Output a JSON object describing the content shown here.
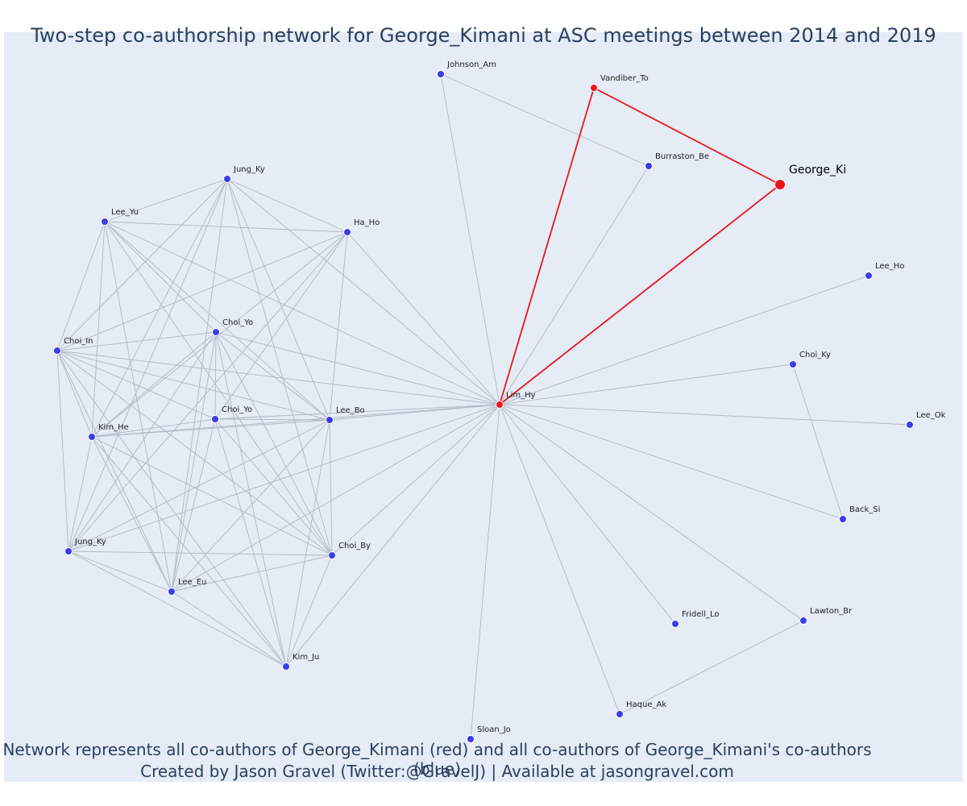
{
  "title": "Two-step co-authorship network for George_Kimani at ASC meetings between 2014 and 2019",
  "caption_line1": "Network represents all co-authors of George_Kimani (red) and all co-authors of George_Kimani's co-authors (blue)",
  "caption_line2": "Created by Jason Gravel (Twitter:@GravelJ) | Available at jasongravel.com",
  "colors": {
    "background": "#e5ecf6",
    "edge": "#b0b6c4",
    "focal_edge": "#e8161b",
    "red_node": "#e8161b",
    "blue_node": "#3a3ee8",
    "text": "#2a3f5f"
  },
  "nodes": [
    {
      "id": "george",
      "label": "George_Ki",
      "group": "focal"
    },
    {
      "id": "vandiber",
      "label": "Vandiber_To",
      "group": "red"
    },
    {
      "id": "lim",
      "label": "Lim_Hy",
      "group": "red"
    },
    {
      "id": "johnson",
      "label": "Johnson_Am",
      "group": "blue"
    },
    {
      "id": "burraston",
      "label": "Burraston_Be",
      "group": "blue"
    },
    {
      "id": "jungky1",
      "label": "Jung_Ky",
      "group": "blue"
    },
    {
      "id": "leeyu",
      "label": "Lee_Yu",
      "group": "blue"
    },
    {
      "id": "haho",
      "label": "Ha_Ho",
      "group": "blue"
    },
    {
      "id": "choiin",
      "label": "Choi_In",
      "group": "blue"
    },
    {
      "id": "choiyo1",
      "label": "Choi_Yo",
      "group": "blue"
    },
    {
      "id": "choiyo2",
      "label": "Choi_Yo",
      "group": "blue"
    },
    {
      "id": "leebo",
      "label": "Lee_Bo",
      "group": "blue"
    },
    {
      "id": "kimhe",
      "label": "Kim_He",
      "group": "blue"
    },
    {
      "id": "jungky2",
      "label": "Jung_Ky",
      "group": "blue"
    },
    {
      "id": "leeeu",
      "label": "Lee_Eu",
      "group": "blue"
    },
    {
      "id": "choiby",
      "label": "Choi_By",
      "group": "blue"
    },
    {
      "id": "kimju",
      "label": "Kim_Ju",
      "group": "blue"
    },
    {
      "id": "leeho",
      "label": "Lee_Ho",
      "group": "blue"
    },
    {
      "id": "choiky",
      "label": "Choi_Ky",
      "group": "blue"
    },
    {
      "id": "leeok",
      "label": "Lee_Ok",
      "group": "blue"
    },
    {
      "id": "backsi",
      "label": "Back_Si",
      "group": "blue"
    },
    {
      "id": "fridell",
      "label": "Fridell_Lo",
      "group": "blue"
    },
    {
      "id": "lawton",
      "label": "Lawton_Br",
      "group": "blue"
    },
    {
      "id": "haque",
      "label": "Haque_Ak",
      "group": "blue"
    },
    {
      "id": "sloan",
      "label": "Sloan_Jo",
      "group": "blue"
    }
  ],
  "edges": [
    [
      "george",
      "vandiber"
    ],
    [
      "george",
      "lim"
    ],
    [
      "vandiber",
      "lim"
    ],
    [
      "johnson",
      "burraston"
    ],
    [
      "johnson",
      "lim"
    ],
    [
      "burraston",
      "lim"
    ],
    [
      "lim",
      "leeho"
    ],
    [
      "lim",
      "choiky"
    ],
    [
      "lim",
      "leeok"
    ],
    [
      "lim",
      "backsi"
    ],
    [
      "lim",
      "fridell"
    ],
    [
      "lim",
      "lawton"
    ],
    [
      "lim",
      "haque"
    ],
    [
      "lim",
      "sloan"
    ],
    [
      "choiky",
      "backsi"
    ],
    [
      "lawton",
      "haque"
    ],
    [
      "lim",
      "jungky1"
    ],
    [
      "lim",
      "haho"
    ],
    [
      "lim",
      "leeyu"
    ],
    [
      "lim",
      "choiin"
    ],
    [
      "lim",
      "choiyo1"
    ],
    [
      "lim",
      "choiyo2"
    ],
    [
      "lim",
      "leebo"
    ],
    [
      "lim",
      "kimhe"
    ],
    [
      "lim",
      "jungky2"
    ],
    [
      "lim",
      "leeeu"
    ],
    [
      "lim",
      "choiby"
    ],
    [
      "lim",
      "kimju"
    ],
    [
      "jungky1",
      "leeyu"
    ],
    [
      "jungky1",
      "haho"
    ],
    [
      "jungky1",
      "choiin"
    ],
    [
      "jungky1",
      "kimhe"
    ],
    [
      "jungky1",
      "leebo"
    ],
    [
      "jungky1",
      "choiby"
    ],
    [
      "jungky1",
      "leeeu"
    ],
    [
      "jungky1",
      "jungky2"
    ],
    [
      "leeyu",
      "haho"
    ],
    [
      "leeyu",
      "choiin"
    ],
    [
      "leeyu",
      "kimhe"
    ],
    [
      "leeyu",
      "leebo"
    ],
    [
      "leeyu",
      "choiby"
    ],
    [
      "leeyu",
      "choiyo1"
    ],
    [
      "leeyu",
      "leeeu"
    ],
    [
      "haho",
      "choiin"
    ],
    [
      "haho",
      "kimhe"
    ],
    [
      "haho",
      "leebo"
    ],
    [
      "haho",
      "choiyo2"
    ],
    [
      "haho",
      "jungky2"
    ],
    [
      "choiin",
      "choiyo1"
    ],
    [
      "choiin",
      "choiyo2"
    ],
    [
      "choiin",
      "leebo"
    ],
    [
      "choiin",
      "kimhe"
    ],
    [
      "choiin",
      "jungky2"
    ],
    [
      "choiin",
      "leeeu"
    ],
    [
      "choiin",
      "choiby"
    ],
    [
      "choiin",
      "kimju"
    ],
    [
      "choiyo1",
      "choiyo2"
    ],
    [
      "choiyo1",
      "leebo"
    ],
    [
      "choiyo1",
      "kimhe"
    ],
    [
      "choiyo1",
      "jungky2"
    ],
    [
      "choiyo1",
      "leeeu"
    ],
    [
      "choiyo1",
      "choiby"
    ],
    [
      "choiyo1",
      "kimju"
    ],
    [
      "choiyo2",
      "leebo"
    ],
    [
      "choiyo2",
      "kimhe"
    ],
    [
      "choiyo2",
      "leeeu"
    ],
    [
      "choiyo2",
      "choiby"
    ],
    [
      "choiyo2",
      "kimju"
    ],
    [
      "leebo",
      "kimhe"
    ],
    [
      "leebo",
      "choiby"
    ],
    [
      "leebo",
      "kimju"
    ],
    [
      "leebo",
      "jungky2"
    ],
    [
      "leebo",
      "leeeu"
    ],
    [
      "kimhe",
      "jungky2"
    ],
    [
      "kimhe",
      "leeeu"
    ],
    [
      "kimhe",
      "kimju"
    ],
    [
      "kimhe",
      "choiby"
    ],
    [
      "jungky2",
      "choiby"
    ],
    [
      "jungky2",
      "leeeu"
    ],
    [
      "jungky2",
      "kimju"
    ],
    [
      "leeeu",
      "choiby"
    ],
    [
      "leeeu",
      "kimju"
    ],
    [
      "choiby",
      "kimju"
    ]
  ]
}
